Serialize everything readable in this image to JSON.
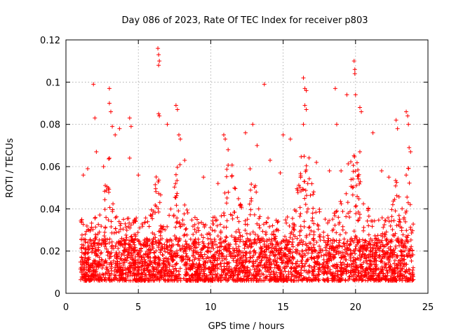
{
  "chart_data": {
    "type": "scatter",
    "title": "Day 086 of 2023, Rate Of TEC Index for receiver p803",
    "xlabel": "GPS time / hours",
    "ylabel": "ROTI / TECUs",
    "xlim": [
      0,
      25
    ],
    "ylim": [
      0,
      0.12
    ],
    "xticks": [
      0,
      5,
      10,
      15,
      20,
      25
    ],
    "yticks": [
      0,
      0.02,
      0.04,
      0.06,
      0.08,
      0.1,
      0.12
    ],
    "xtick_labels": [
      "0",
      "5",
      "10",
      "15",
      "20",
      "25"
    ],
    "ytick_labels": [
      "0",
      "0.02",
      "0.04",
      "0.06",
      "0.08",
      "0.1",
      "0.12"
    ],
    "grid": true,
    "marker": "plus",
    "color": "#ff0000",
    "series": [
      {
        "points": [
          [
            1.9,
            0.099
          ],
          [
            2.0,
            0.083
          ],
          [
            2.1,
            0.067
          ],
          [
            3.0,
            0.097
          ],
          [
            3.0,
            0.09
          ],
          [
            3.1,
            0.086
          ],
          [
            3.2,
            0.079
          ],
          [
            3.4,
            0.075
          ],
          [
            3.7,
            0.078
          ],
          [
            4.4,
            0.083
          ],
          [
            4.5,
            0.079
          ],
          [
            4.4,
            0.064
          ],
          [
            6.35,
            0.116
          ],
          [
            6.4,
            0.113
          ],
          [
            6.45,
            0.11
          ],
          [
            6.4,
            0.108
          ],
          [
            6.4,
            0.085
          ],
          [
            6.45,
            0.084
          ],
          [
            7.0,
            0.08
          ],
          [
            7.6,
            0.089
          ],
          [
            7.7,
            0.087
          ],
          [
            7.8,
            0.075
          ],
          [
            7.9,
            0.073
          ],
          [
            10.9,
            0.075
          ],
          [
            11.0,
            0.073
          ],
          [
            11.2,
            0.068
          ],
          [
            12.4,
            0.076
          ],
          [
            12.9,
            0.08
          ],
          [
            13.7,
            0.099
          ],
          [
            13.2,
            0.07
          ],
          [
            15.0,
            0.075
          ],
          [
            15.5,
            0.073
          ],
          [
            16.4,
            0.102
          ],
          [
            16.5,
            0.097
          ],
          [
            16.6,
            0.096
          ],
          [
            16.5,
            0.089
          ],
          [
            16.6,
            0.087
          ],
          [
            16.4,
            0.08
          ],
          [
            18.6,
            0.097
          ],
          [
            18.7,
            0.08
          ],
          [
            19.4,
            0.094
          ],
          [
            19.9,
            0.11
          ],
          [
            19.95,
            0.106
          ],
          [
            19.95,
            0.104
          ],
          [
            20.0,
            0.094
          ],
          [
            20.3,
            0.088
          ],
          [
            20.4,
            0.086
          ],
          [
            20.3,
            0.067
          ],
          [
            21.2,
            0.076
          ],
          [
            22.8,
            0.082
          ],
          [
            22.9,
            0.078
          ],
          [
            23.5,
            0.086
          ],
          [
            23.6,
            0.084
          ],
          [
            23.65,
            0.08
          ],
          [
            23.7,
            0.069
          ],
          [
            23.8,
            0.067
          ],
          [
            1.2,
            0.056
          ],
          [
            1.5,
            0.059
          ],
          [
            2.6,
            0.06
          ],
          [
            5.0,
            0.056
          ],
          [
            8.2,
            0.063
          ],
          [
            9.5,
            0.055
          ],
          [
            10.5,
            0.052
          ],
          [
            14.1,
            0.063
          ],
          [
            14.8,
            0.057
          ],
          [
            17.3,
            0.062
          ],
          [
            18.2,
            0.058
          ],
          [
            19.0,
            0.058
          ],
          [
            21.8,
            0.058
          ],
          [
            22.3,
            0.055
          ]
        ]
      }
    ]
  }
}
